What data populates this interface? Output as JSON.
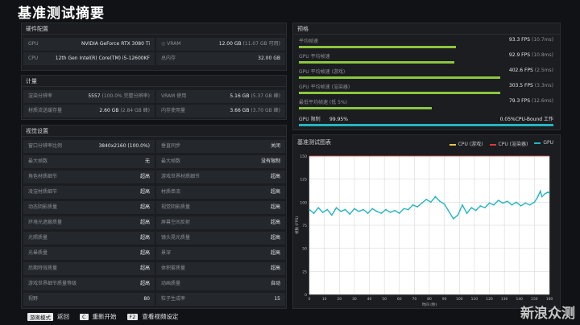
{
  "title": "基准测试摘要",
  "hardware": {
    "header": "硬件配置",
    "gpu_label": "GPU",
    "gpu_value": "NVIDIA GeForce RTX 3080 Ti",
    "vram_label": "VRAM",
    "vram_value": "12.00 GB",
    "vram_sub": "(11.07 GB 可用)",
    "cpu_label": "CPU",
    "cpu_value": "12th Gen Intel(R) Core(TM) i5-12600KF",
    "mem_label": "总内存",
    "mem_value": "32.00 GB"
  },
  "compute": {
    "header": "计量",
    "res_label": "渲染分辨率",
    "res_value": "5557",
    "res_sub": "(100.0% 完整分辨率)",
    "vram_label": "VRAM 使用",
    "vram_value": "5.16 GB",
    "vram_sub": "(5.37 GB 峰)",
    "tex_label": "材质流送缓存量",
    "tex_value": "2.60 GB",
    "tex_sub": "(2.84 GB 峰)",
    "mem_label": "内存使用量",
    "mem_value": "3.66 GB",
    "mem_sub": "(3.70 GB 峰)"
  },
  "settings": {
    "header": "视觉设置",
    "rows": [
      {
        "k1": "窗口分辨率比例",
        "v1": "3840x2160 (100.0%)",
        "k2": "垂直同步",
        "v2": "关闭"
      },
      {
        "k1": "最大帧数",
        "v1": "无",
        "k2": "最大帧数",
        "v2": "没有限制"
      },
      {
        "k1": "角色材质细节",
        "v1": "超高",
        "k2": "游戏世界材质细节",
        "v2": "超高"
      },
      {
        "k1": "凌渲材质细节",
        "v1": "超高",
        "k2": "材质串流",
        "v2": "超高"
      },
      {
        "k1": "动态阴影质量",
        "v1": "超高",
        "k2": "视觉阴影质量",
        "v2": "超高"
      },
      {
        "k1": "环境光遮蔽质量",
        "v1": "超高",
        "k2": "屏幕空间反射",
        "v2": "超高"
      },
      {
        "k1": "光照质量",
        "v1": "超高",
        "k2": "镜头晃光质量",
        "v2": "超高"
      },
      {
        "k1": "光晕质量",
        "v1": "超高",
        "k2": "景深",
        "v2": "超高"
      },
      {
        "k1": "后期特效质量",
        "v1": "超高",
        "k2": "体积雾质量",
        "v2": "超高"
      },
      {
        "k1": "游戏世界细节质量等级",
        "v1": "超高",
        "k2": "动画质量",
        "v2": "自动"
      },
      {
        "k1": "视野",
        "v1": "80",
        "k2": "粒子生成率",
        "v2": "15"
      }
    ]
  },
  "performance": {
    "header": "预格",
    "rows": [
      {
        "label": "平均帧速",
        "value": "93.3 FPS",
        "sub": "(10.7ms)",
        "ratio": 0.78
      },
      {
        "label": "GPU 平均帧速",
        "value": "92.9 FPS",
        "sub": "(10.8ms)",
        "ratio": 0.77
      },
      {
        "label": "GPU 平均帧速 (游戏)",
        "value": "402.6 FPS",
        "sub": "(2.5ms)",
        "ratio": 1.0
      },
      {
        "label": "GPU 平均帧速 (渲染器)",
        "value": "303.5 FPS",
        "sub": "(3.3ms)",
        "ratio": 1.0
      },
      {
        "label": "最低平均帧速 (低 5%)",
        "value": "79.3 FPS",
        "sub": "(12.6ms)",
        "ratio": 0.66
      }
    ],
    "gpu_bound_label": "GPU 限制",
    "gpu_bound_pct": "99.95%",
    "cpu_bound_text": "0.05%CPU-Bound 工作",
    "gpu_bound_ratio": 0.9995
  },
  "chart_panel_title": "基准测试图表",
  "chart_data": {
    "type": "line",
    "title": "",
    "xlabel": "时间 (秒)",
    "ylabel": "帧数 (FPS)",
    "xlim": [
      0,
      160
    ],
    "ylim": [
      0,
      150
    ],
    "xticks": [
      0,
      10,
      20,
      30,
      40,
      50,
      60,
      70,
      80,
      90,
      100,
      110,
      120,
      130,
      140,
      150,
      160
    ],
    "yticks": [
      0,
      25,
      50,
      75,
      100,
      125,
      150
    ],
    "legend_position": "top-right",
    "series": [
      {
        "name": "CPU (游戏)",
        "color": "#e8c34a",
        "values": []
      },
      {
        "name": "CPU (渲染器)",
        "color": "#d93a3a",
        "values": [
          [
            0,
            150
          ],
          [
            160,
            150
          ]
        ]
      },
      {
        "name": "GPU",
        "color": "#25b4c0",
        "values": [
          [
            0,
            92
          ],
          [
            3,
            88
          ],
          [
            6,
            94
          ],
          [
            9,
            89
          ],
          [
            12,
            92
          ],
          [
            15,
            86
          ],
          [
            18,
            94
          ],
          [
            21,
            90
          ],
          [
            24,
            92
          ],
          [
            27,
            87
          ],
          [
            30,
            93
          ],
          [
            33,
            90
          ],
          [
            36,
            92
          ],
          [
            39,
            88
          ],
          [
            42,
            93
          ],
          [
            45,
            90
          ],
          [
            48,
            88
          ],
          [
            51,
            92
          ],
          [
            54,
            89
          ],
          [
            57,
            91
          ],
          [
            60,
            88
          ],
          [
            63,
            93
          ],
          [
            66,
            92
          ],
          [
            69,
            97
          ],
          [
            72,
            95
          ],
          [
            75,
            99
          ],
          [
            78,
            103
          ],
          [
            81,
            100
          ],
          [
            84,
            106
          ],
          [
            87,
            101
          ],
          [
            90,
            98
          ],
          [
            93,
            90
          ],
          [
            96,
            82
          ],
          [
            99,
            86
          ],
          [
            102,
            97
          ],
          [
            105,
            88
          ],
          [
            108,
            94
          ],
          [
            111,
            91
          ],
          [
            114,
            96
          ],
          [
            117,
            94
          ],
          [
            120,
            99
          ],
          [
            123,
            97
          ],
          [
            126,
            102
          ],
          [
            129,
            99
          ],
          [
            132,
            101
          ],
          [
            135,
            97
          ],
          [
            138,
            100
          ],
          [
            141,
            96
          ],
          [
            144,
            99
          ],
          [
            147,
            97
          ],
          [
            150,
            100
          ],
          [
            152,
            105
          ],
          [
            154,
            112
          ],
          [
            155,
            106
          ],
          [
            157,
            109
          ],
          [
            159,
            111
          ],
          [
            160,
            110
          ]
        ]
      }
    ]
  },
  "footer": {
    "key1": "游离模式",
    "label1": "返回",
    "key2": "C",
    "label2": "重新开始",
    "key3": "F2",
    "label3": "查看视频设定"
  },
  "watermark": "新浪众测"
}
